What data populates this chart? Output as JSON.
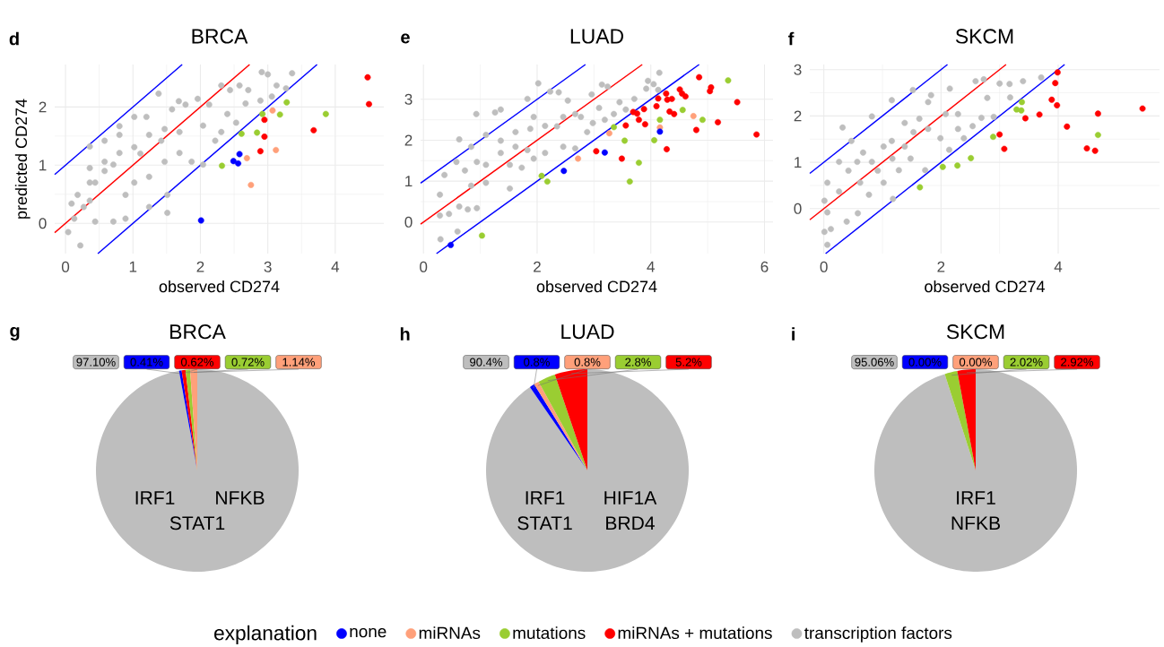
{
  "chart_data": [
    {
      "type": "scatter",
      "title": "BRCA",
      "xlabel": "observed CD274",
      "ylabel": "predicted CD274",
      "annotations": [
        "d"
      ],
      "xlim": [
        -0.16,
        4.72
      ],
      "ylim": [
        -0.52,
        2.73
      ],
      "xticks": [
        0,
        1,
        2,
        3,
        4
      ],
      "yticks": [
        0,
        1,
        2
      ],
      "grid": true,
      "legend": "bottom",
      "legend_title": "explanation",
      "series": [
        {
          "name": "none",
          "color": "#0000ff",
          "x": [
            2.01,
            2.49,
            2.56,
            2.58
          ],
          "values": [
            0.05,
            1.07,
            1.03,
            1.19
          ]
        },
        {
          "name": "miRNAs",
          "color": "#ffa07a",
          "x": [
            2.69,
            2.75,
            3.07,
            3.12
          ],
          "values": [
            1.12,
            0.66,
            1.94,
            1.26
          ]
        },
        {
          "name": "mutations",
          "color": "#9acd32",
          "x": [
            2.32,
            2.61,
            2.84,
            2.92,
            3.18,
            3.28,
            3.86
          ],
          "values": [
            0.99,
            1.54,
            1.56,
            1.88,
            1.87,
            2.08,
            1.88
          ]
        },
        {
          "name": "miRNAs + mutations",
          "color": "#ff0000",
          "x": [
            2.89,
            2.95,
            2.95,
            3.68,
            4.48,
            4.5
          ],
          "values": [
            1.24,
            1.78,
            1.49,
            1.6,
            2.51,
            2.05
          ]
        },
        {
          "name": "transcription factors",
          "color": "#bebebe",
          "x": [
            0.04,
            0.22,
            0.09,
            0.18,
            0.36,
            0.44,
            0.58,
            0.71,
            0.8,
            0.89,
            1.02,
            1.11,
            1.2,
            1.24,
            1.38,
            1.42,
            1.51,
            1.58,
            1.69,
            1.68,
            1.78,
            1.87,
            1.96,
            2.04,
            2.13,
            2.22,
            2.31,
            2.4,
            2.44,
            2.53,
            2.58,
            2.71,
            2.67,
            2.89,
            2.91,
            3.0,
            3.13,
            3.36,
            3.27,
            3.06,
            2.31,
            1.51,
            0.44,
            0.71,
            0.89,
            2.04,
            1.24,
            0.36,
            0.8,
            1.69,
            0.13,
            1.47,
            1.02,
            0.58,
            0.36,
            0.58,
            0.8,
            1.02,
            1.24,
            1.47,
            0.36,
            0.27
          ],
          "values": [
            -0.15,
            -0.38,
            0.34,
            0.49,
            0.95,
            0.7,
            1.42,
            1.01,
            1.67,
            0.49,
            1.83,
            1.2,
            1.83,
            0.8,
            2.23,
            1.42,
            0.49,
            1.96,
            1.57,
            2.1,
            2.04,
            1.06,
            2.14,
            1.68,
            2.04,
            1.42,
            2.37,
            1.88,
            2.29,
            1.73,
            2.37,
            2.29,
            2.06,
            2.11,
            2.6,
            2.56,
            2.37,
            2.58,
            2.32,
            2.18,
            1.57,
            0.18,
            0.03,
            0.03,
            0.08,
            1.01,
            0.28,
            1.32,
            1.52,
            1.21,
            0.08,
            1.06,
            0.7,
            0.9,
            0.39,
            1.06,
            1.21,
            1.31,
            1.52,
            1.62,
            0.7,
            0.28
          ]
        },
        {
          "type": "line",
          "marker": "none",
          "color": "#ff0000",
          "x": [
            -0.16,
            2.73
          ],
          "values": [
            -0.16,
            2.73
          ]
        },
        {
          "type": "line",
          "marker": "none",
          "color": "#0000ff",
          "x": [
            -0.16,
            1.73
          ],
          "values": [
            0.84,
            2.73
          ]
        },
        {
          "type": "line",
          "marker": "none",
          "color": "#0000ff",
          "x": [
            0.48,
            3.73
          ],
          "values": [
            -0.52,
            2.73
          ]
        }
      ]
    },
    {
      "type": "scatter",
      "title": "LUAD",
      "xlabel": "observed CD274",
      "annotations": [
        "e"
      ],
      "xlim": [
        -0.05,
        6.15
      ],
      "ylim": [
        -0.77,
        3.85
      ],
      "xticks": [
        0,
        2,
        4,
        6
      ],
      "yticks": [
        0,
        1,
        2,
        3
      ],
      "grid": true,
      "series": [
        {
          "color": "#0000ff",
          "x": [
            0.48,
            2.47,
            3.19,
            4.16
          ],
          "values": [
            -0.56,
            1.25,
            1.7,
            2.21
          ]
        },
        {
          "color": "#ffa07a",
          "x": [
            2.72,
            3.27,
            4.16,
            4.75
          ],
          "values": [
            1.55,
            2.17,
            2.31,
            2.59
          ]
        },
        {
          "color": "#9acd32",
          "x": [
            1.03,
            2.08,
            2.18,
            3.35,
            3.54,
            3.63,
            3.79,
            4.06,
            4.16,
            4.56,
            4.91,
            5.36
          ],
          "values": [
            -0.33,
            1.13,
            0.99,
            2.32,
            1.99,
            0.99,
            1.45,
            2.0,
            2.5,
            2.74,
            2.5,
            3.46
          ]
        },
        {
          "color": "#ff0000",
          "x": [
            3.04,
            3.49,
            3.56,
            3.69,
            3.76,
            3.79,
            3.88,
            3.9,
            4.1,
            4.13,
            4.27,
            4.28,
            4.29,
            4.33,
            4.37,
            4.41,
            4.51,
            4.55,
            4.61,
            4.8,
            4.85,
            5.04,
            5.06,
            5.18,
            5.52,
            5.86
          ],
          "values": [
            1.73,
            1.55,
            2.36,
            2.69,
            2.65,
            2.5,
            2.76,
            2.39,
            2.83,
            3.02,
            3.14,
            1.78,
            2.99,
            2.7,
            3.01,
            2.64,
            3.24,
            3.14,
            3.07,
            2.25,
            3.54,
            3.2,
            3.29,
            2.44,
            2.93,
            2.14
          ]
        },
        {
          "color": "#bebebe",
          "x": [
            0.3,
            0.6,
            0.29,
            0.45,
            0.63,
            0.78,
            0.94,
            0.29,
            0.37,
            0.58,
            0.63,
            0.93,
            0.84,
            1.1,
            1.26,
            1.36,
            1.52,
            1.62,
            1.73,
            1.83,
            1.94,
            2.02,
            2.14,
            2.23,
            2.35,
            2.38,
            2.46,
            2.54,
            2.67,
            2.77,
            2.96,
            2.88,
            3.09,
            3.19,
            3.14,
            3.24,
            3.45,
            3.56,
            3.71,
            3.92,
            3.95,
            4.05,
            4.15,
            4.13,
            1.1,
            0.84,
            1.1,
            1.36,
            1.62,
            1.88,
            2.14,
            1.83,
            1.36,
            0.73,
            0.94,
            2.67,
            2.46,
            1.94,
            1.52,
            2.98,
            3.35
          ],
          "values": [
            -0.42,
            -0.23,
            0.16,
            0.2,
            0.38,
            0.31,
            0.34,
            0.67,
            1.15,
            1.47,
            2.02,
            2.64,
            0.89,
            1.4,
            2.68,
            2.75,
            0.82,
            2.2,
            1.33,
            3.01,
            2.57,
            3.39,
            1.69,
            3.19,
            2.34,
            3.17,
            1.84,
            2.97,
            1.8,
            2.57,
            3.12,
            2.2,
            2.79,
            2.5,
            3.36,
            3.31,
            2.93,
            2.75,
            3.01,
            3.26,
            3.45,
            3.37,
            3.65,
            3.23,
            2.13,
            1.84,
            0.96,
            1.69,
            1.84,
            2.28,
            2.35,
            1.76,
            1.99,
            1.26,
            1.47,
            2.64,
            2.57,
            1.55,
            1.4,
            2.42,
            2.64
          ]
        },
        {
          "type": "line",
          "marker": "none",
          "color": "#ff0000",
          "x": [
            -0.05,
            3.85
          ],
          "values": [
            -0.05,
            3.85
          ]
        },
        {
          "type": "line",
          "marker": "none",
          "color": "#0000ff",
          "x": [
            -0.05,
            2.85
          ],
          "values": [
            0.95,
            3.85
          ]
        },
        {
          "type": "line",
          "marker": "none",
          "color": "#0000ff",
          "x": [
            0.23,
            4.85
          ],
          "values": [
            -0.77,
            3.85
          ]
        }
      ]
    },
    {
      "type": "scatter",
      "title": "SKCM",
      "xlabel": "observed CD274",
      "annotations": [
        "f"
      ],
      "xlim": [
        -0.24,
        5.73
      ],
      "ylim": [
        -0.97,
        3.11
      ],
      "xticks": [
        0,
        2,
        4
      ],
      "yticks": [
        0,
        1,
        2,
        3
      ],
      "grid": true,
      "series": [
        {
          "color": "#9acd32",
          "x": [
            1.64,
            2.03,
            2.28,
            2.51,
            2.89,
            3.29,
            3.37,
            3.38,
            4.68
          ],
          "values": [
            0.46,
            0.9,
            0.93,
            1.09,
            1.55,
            2.14,
            2.12,
            2.3,
            1.59
          ]
        },
        {
          "color": "#ff0000",
          "x": [
            3.0,
            3.08,
            3.44,
            3.68,
            3.89,
            3.95,
            3.98,
            3.99,
            4.15,
            4.49,
            4.63,
            4.68,
            5.44
          ],
          "values": [
            1.6,
            1.29,
            1.95,
            2.03,
            2.35,
            2.71,
            2.23,
            2.94,
            1.77,
            1.3,
            1.25,
            2.05,
            2.16
          ]
        },
        {
          "color": "#bebebe",
          "x": [
            0.01,
            0.06,
            0.12,
            0.06,
            0.01,
            0.06,
            0.32,
            0.26,
            0.39,
            0.58,
            0.47,
            0.77,
            0.82,
            0.82,
            1.02,
            1.16,
            1.18,
            1.16,
            1.38,
            1.52,
            1.48,
            1.63,
            1.78,
            1.73,
            1.83,
            1.99,
            2.14,
            2.15,
            2.29,
            2.39,
            2.59,
            2.73,
            2.69,
            2.79,
            3.0,
            3.18,
            3.17,
            3.4,
            3.71,
            2.9,
            2.54,
            1.28,
            0.42,
            0.67,
            1.02,
            1.53,
            0.62,
            0.92,
            1.78,
            2.08,
            1.38,
            0.57,
            0.26,
            1.17,
            2.29
          ],
          "values": [
            -0.5,
            -0.78,
            -0.44,
            -0.08,
            0.17,
            0.56,
            1.75,
            1.01,
            -0.28,
            -0.1,
            1.46,
            0.3,
            1.99,
            1.01,
            0.56,
            2.34,
            0.21,
            1.46,
            1.85,
            2.56,
            1.08,
            1.94,
            2.3,
            0.83,
            2.45,
            1.52,
            1.27,
            2.59,
            2.04,
            1.52,
            2.75,
            2.79,
            1.96,
            2.39,
            2.7,
            2.4,
            2.69,
            2.75,
            2.83,
            1.98,
            1.78,
            0.83,
            0.82,
            1.21,
            1.34,
            1.65,
            0.56,
            0.82,
            1.72,
            2.04,
            1.34,
            1.01,
            0.37,
            1.08,
            1.72
          ]
        },
        {
          "type": "line",
          "marker": "none",
          "color": "#ff0000",
          "x": [
            -0.24,
            3.11
          ],
          "values": [
            -0.24,
            3.11
          ]
        },
        {
          "type": "line",
          "marker": "none",
          "color": "#0000ff",
          "x": [
            -0.24,
            2.11
          ],
          "values": [
            0.76,
            3.11
          ]
        },
        {
          "type": "line",
          "marker": "none",
          "color": "#0000ff",
          "x": [
            0.03,
            4.11
          ],
          "values": [
            -0.97,
            3.11
          ]
        }
      ]
    },
    {
      "type": "pie",
      "title": "BRCA",
      "annotations": [
        "g",
        "IRF1",
        "NFKB",
        "STAT1"
      ],
      "categories": [
        null,
        null,
        null,
        null,
        null
      ],
      "values": [
        97.1,
        0.41,
        0.62,
        0.72,
        1.14
      ],
      "colors": [
        "#bebebe",
        "#0000ff",
        "#ff0000",
        "#9acd32",
        "#ffa07a"
      ],
      "value_labels": [
        "97.10%",
        "0.41%",
        "0.62%",
        "0.72%",
        "1.14%"
      ]
    },
    {
      "type": "pie",
      "title": "LUAD",
      "annotations": [
        "h",
        "IRF1",
        "HIF1A",
        "STAT1",
        "BRD4"
      ],
      "categories": [
        null,
        null,
        null,
        null,
        null
      ],
      "values": [
        90.4,
        0.8,
        0.8,
        2.8,
        5.2
      ],
      "colors": [
        "#bebebe",
        "#0000ff",
        "#ffa07a",
        "#9acd32",
        "#ff0000"
      ],
      "value_labels": [
        "90.4%",
        "0.8%",
        "0.8%",
        "2.8%",
        "5.2%"
      ]
    },
    {
      "type": "pie",
      "title": "SKCM",
      "annotations": [
        "i",
        "IRF1",
        "NFKB"
      ],
      "categories": [
        null,
        null,
        null,
        null,
        null
      ],
      "values": [
        95.06,
        0.0,
        0.0,
        2.02,
        2.92
      ],
      "colors": [
        "#bebebe",
        "#0000ff",
        "#ffa07a",
        "#9acd32",
        "#ff0000"
      ],
      "value_labels": [
        "95.06%",
        "0.00%",
        "0.00%",
        "2.02%",
        "2.92%"
      ]
    }
  ]
}
